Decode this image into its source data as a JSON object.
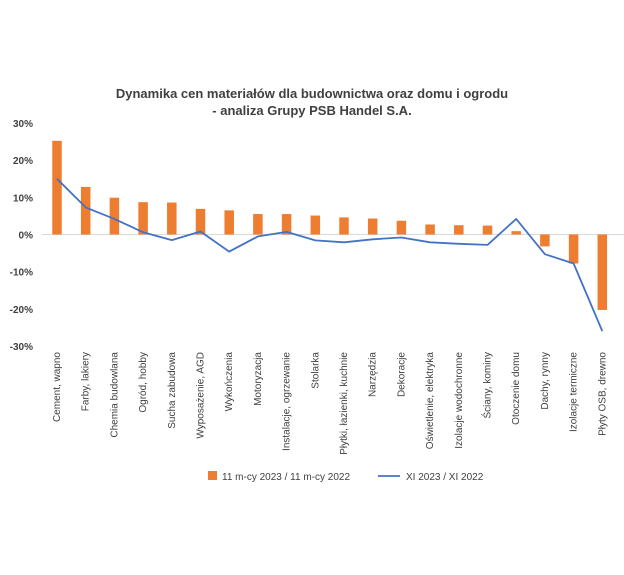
{
  "chart_data": {
    "type": "bar+line",
    "title": "Dynamika cen materiałów dla budownictwa oraz domu i ogrodu",
    "subtitle": "- analiza Grupy PSB Handel S.A.",
    "categories": [
      "Cement, wapno",
      "Farby, lakiery",
      "Chemia budowlana",
      "Ogród, hobby",
      "Sucha zabudowa",
      "Wyposażenie, AGD",
      "Wykończenia",
      "Motoryzacja",
      "Instalacje, ogrzewanie",
      "Stolarka",
      "Płytki, łazienki, kuchnie",
      "Narzędzia",
      "Dekoracje",
      "Oświetlenie, elektryka",
      "Izolacje wodochronne",
      "Ściany, kominy",
      "Otoczenie domu",
      "Dachy, rynny",
      "Izolacje termiczne",
      "Płyty OSB, drewno"
    ],
    "series": [
      {
        "name": "11 m-cy 2023 / 11 m-cy 2022",
        "type": "bar",
        "color": "#ED7D31",
        "values": [
          25.2,
          12.8,
          9.9,
          8.7,
          8.6,
          6.9,
          6.5,
          5.5,
          5.5,
          5.1,
          4.6,
          4.3,
          3.7,
          2.7,
          2.5,
          2.4,
          0.9,
          -3.2,
          -7.8,
          -20.3
        ]
      },
      {
        "name": "XI 2023 / XI 2022",
        "type": "line",
        "color": "#4472C4",
        "values": [
          15.0,
          7.3,
          4.2,
          0.6,
          -1.5,
          0.8,
          -4.6,
          -0.5,
          0.7,
          -1.6,
          -2.1,
          -1.3,
          -0.8,
          -2.1,
          -2.5,
          -2.8,
          4.2,
          -5.3,
          -7.8,
          -26.0
        ]
      }
    ],
    "ylim": [
      -30,
      30
    ],
    "yticks": [
      -30,
      -20,
      -10,
      0,
      10,
      20,
      30
    ],
    "ytick_labels": [
      "-30%",
      "-20%",
      "-10%",
      "0%",
      "10%",
      "20%",
      "30%"
    ],
    "xlabel": "",
    "ylabel": "",
    "grid": false,
    "legend_position": "bottom"
  }
}
